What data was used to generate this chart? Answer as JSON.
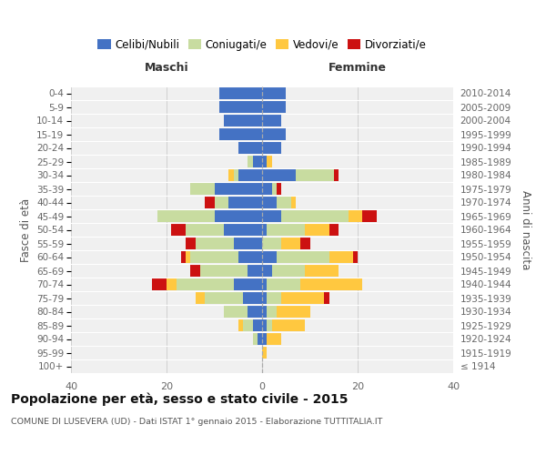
{
  "age_groups": [
    "100+",
    "95-99",
    "90-94",
    "85-89",
    "80-84",
    "75-79",
    "70-74",
    "65-69",
    "60-64",
    "55-59",
    "50-54",
    "45-49",
    "40-44",
    "35-39",
    "30-34",
    "25-29",
    "20-24",
    "15-19",
    "10-14",
    "5-9",
    "0-4"
  ],
  "birth_years": [
    "≤ 1914",
    "1915-1919",
    "1920-1924",
    "1925-1929",
    "1930-1934",
    "1935-1939",
    "1940-1944",
    "1945-1949",
    "1950-1954",
    "1955-1959",
    "1960-1964",
    "1965-1969",
    "1970-1974",
    "1975-1979",
    "1980-1984",
    "1985-1989",
    "1990-1994",
    "1995-1999",
    "2000-2004",
    "2005-2009",
    "2010-2014"
  ],
  "maschi": {
    "celibi": [
      0,
      0,
      1,
      2,
      3,
      4,
      6,
      3,
      5,
      6,
      8,
      10,
      7,
      10,
      5,
      2,
      5,
      9,
      8,
      9,
      9
    ],
    "coniugati": [
      0,
      0,
      1,
      2,
      5,
      8,
      12,
      10,
      10,
      8,
      8,
      12,
      3,
      5,
      1,
      1,
      0,
      0,
      0,
      0,
      0
    ],
    "vedovi": [
      0,
      0,
      0,
      1,
      0,
      2,
      2,
      0,
      1,
      0,
      0,
      0,
      0,
      0,
      1,
      0,
      0,
      0,
      0,
      0,
      0
    ],
    "divorziati": [
      0,
      0,
      0,
      0,
      0,
      0,
      3,
      2,
      1,
      2,
      3,
      0,
      2,
      0,
      0,
      0,
      0,
      0,
      0,
      0,
      0
    ]
  },
  "femmine": {
    "nubili": [
      0,
      0,
      1,
      1,
      1,
      1,
      1,
      2,
      3,
      0,
      1,
      4,
      3,
      2,
      7,
      1,
      4,
      5,
      4,
      5,
      5
    ],
    "coniugate": [
      0,
      0,
      0,
      1,
      2,
      3,
      7,
      7,
      11,
      4,
      8,
      14,
      3,
      1,
      8,
      0,
      0,
      0,
      0,
      0,
      0
    ],
    "vedove": [
      0,
      1,
      3,
      7,
      7,
      9,
      13,
      7,
      5,
      4,
      5,
      3,
      1,
      0,
      0,
      1,
      0,
      0,
      0,
      0,
      0
    ],
    "divorziate": [
      0,
      0,
      0,
      0,
      0,
      1,
      0,
      0,
      1,
      2,
      2,
      3,
      0,
      1,
      1,
      0,
      0,
      0,
      0,
      0,
      0
    ]
  },
  "colors": {
    "celibi": "#4472c4",
    "coniugati": "#c8dca0",
    "vedovi": "#ffc840",
    "divorziati": "#cc1111"
  },
  "xlim": 40,
  "title": "Popolazione per età, sesso e stato civile - 2015",
  "subtitle": "COMUNE DI LUSEVERA (UD) - Dati ISTAT 1° gennaio 2015 - Elaborazione TUTTITALIA.IT",
  "ylabel_left": "Fasce di età",
  "ylabel_right": "Anni di nascita",
  "xlabel_left": "Maschi",
  "xlabel_right": "Femmine",
  "bg_color": "#f0f0f0",
  "grid_color": "#cccccc"
}
